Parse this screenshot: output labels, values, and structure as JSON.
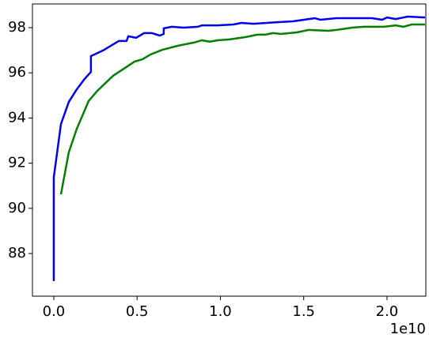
{
  "chart_data": {
    "type": "line",
    "x_offset_label": "1e10",
    "xlim": [
      -0.128,
      2.233
    ],
    "ylim": [
      86.11,
      99.05
    ],
    "xticks": [
      {
        "value": 0,
        "label": "0.0"
      },
      0.5,
      {
        "value": 1,
        "label": "1.0"
      },
      1.5,
      {
        "value": 2,
        "label": "2.0"
      }
    ],
    "yticks": [
      88,
      90,
      92,
      94,
      96,
      98
    ],
    "grid": false,
    "series": [
      {
        "color": "#0000ee",
        "x": [
          0,
          0,
          0.043,
          0.09,
          0.138,
          0.185,
          0.223,
          0.223,
          0.295,
          0.39,
          0.437,
          0.447,
          0.494,
          0.542,
          0.589,
          0.637,
          0.66,
          0.66,
          0.708,
          0.779,
          0.865,
          0.888,
          0.983,
          1.078,
          1.126,
          1.197,
          1.34,
          1.435,
          1.568,
          1.601,
          1.696,
          1.791,
          1.91,
          1.971,
          2.0,
          2.052,
          2.124,
          2.228
        ],
        "values": [
          86.78,
          91.37,
          93.73,
          94.71,
          95.27,
          95.73,
          96.04,
          96.74,
          96.99,
          97.41,
          97.41,
          97.62,
          97.55,
          97.76,
          97.76,
          97.65,
          97.72,
          97.97,
          98.04,
          98.0,
          98.04,
          98.1,
          98.1,
          98.14,
          98.21,
          98.17,
          98.24,
          98.28,
          98.42,
          98.35,
          98.42,
          98.42,
          98.42,
          98.35,
          98.45,
          98.38,
          98.49,
          98.45
        ]
      },
      {
        "color": "#008000",
        "x": [
          0.043,
          0.09,
          0.138,
          0.209,
          0.261,
          0.356,
          0.485,
          0.532,
          0.58,
          0.651,
          0.746,
          0.841,
          0.888,
          0.936,
          0.983,
          1.055,
          1.15,
          1.221,
          1.268,
          1.316,
          1.363,
          1.458,
          1.53,
          1.648,
          1.696,
          1.791,
          1.863,
          1.981,
          2.052,
          2.1,
          2.147,
          2.228
        ],
        "values": [
          90.62,
          92.48,
          93.52,
          94.75,
          95.2,
          95.87,
          96.5,
          96.6,
          96.81,
          97.02,
          97.2,
          97.34,
          97.44,
          97.38,
          97.44,
          97.48,
          97.58,
          97.69,
          97.69,
          97.76,
          97.72,
          97.79,
          97.9,
          97.86,
          97.9,
          98.0,
          98.04,
          98.04,
          98.1,
          98.04,
          98.14,
          98.14
        ]
      }
    ]
  }
}
